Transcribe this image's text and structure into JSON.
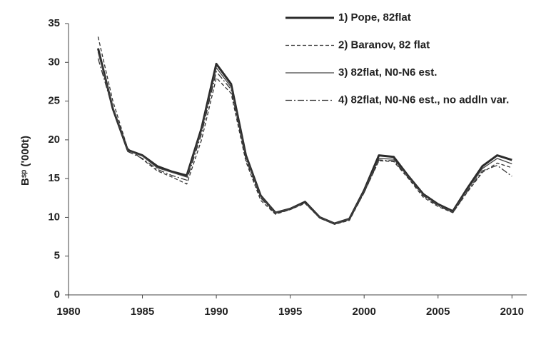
{
  "chart_data": {
    "type": "line",
    "ylabel": "Bˢᵖ ('000t)",
    "x": [
      1982,
      1983,
      1984,
      1985,
      1986,
      1987,
      1988,
      1989,
      1990,
      1991,
      1992,
      1993,
      1994,
      1995,
      1996,
      1997,
      1998,
      1999,
      2000,
      2001,
      2002,
      2003,
      2004,
      2005,
      2006,
      2007,
      2008,
      2009,
      2010
    ],
    "series": [
      {
        "name": "1) Pope, 82flat",
        "color": "#2b2b2b",
        "style": "solid",
        "width": 3,
        "values": [
          31.8,
          24,
          18.7,
          18,
          16.6,
          15.9,
          15.4,
          21.5,
          29.8,
          27.2,
          18,
          12.8,
          10.6,
          11.1,
          12,
          10,
          9.2,
          9.8,
          13.5,
          18,
          17.8,
          15.3,
          13,
          11.7,
          10.8,
          13.8,
          16.6,
          18,
          17.4
        ]
      },
      {
        "name": "2) Baranov, 82 flat",
        "color": "#333333",
        "style": "dashed",
        "width": 1.3,
        "values": [
          33.3,
          25,
          18.9,
          17.5,
          16,
          15.2,
          14.3,
          20,
          28,
          26,
          17.2,
          12.2,
          10.4,
          11,
          11.8,
          9.9,
          9.1,
          9.6,
          13.2,
          17.3,
          17.2,
          15,
          12.6,
          11.4,
          10.6,
          13.3,
          15.8,
          17,
          16.4
        ]
      },
      {
        "name": "3) 82flat, N0-N6 est.",
        "color": "#444444",
        "style": "solid",
        "width": 1.3,
        "values": [
          31.3,
          24.2,
          18.6,
          17.9,
          16.4,
          15.8,
          15.2,
          21.2,
          29.3,
          26.8,
          17.8,
          12.7,
          10.6,
          11.1,
          11.9,
          10,
          9.2,
          9.8,
          13.4,
          17.6,
          17.5,
          15.2,
          12.9,
          11.6,
          10.7,
          13.6,
          16.3,
          17.6,
          16.9
        ]
      },
      {
        "name": "4) 82flat, N0-N6 est., no addln var.",
        "color": "#333333",
        "style": "dashdot",
        "width": 1.3,
        "values": [
          30.5,
          24,
          18.5,
          17.6,
          16.2,
          15.4,
          14.8,
          20.8,
          28.8,
          26.5,
          17.5,
          12.5,
          10.5,
          11,
          11.9,
          9.9,
          9.1,
          9.7,
          13.2,
          17.4,
          17.3,
          15.1,
          12.8,
          11.5,
          10.6,
          13.4,
          16,
          16.7,
          15.3
        ]
      }
    ],
    "xlim": [
      1980,
      2011
    ],
    "xticks": [
      1980,
      1985,
      1990,
      1995,
      2000,
      2005,
      2010
    ],
    "ylim": [
      0,
      35
    ],
    "yticks": [
      0,
      5,
      10,
      15,
      20,
      25,
      30,
      35
    ],
    "grid": false,
    "legend": "top-right"
  }
}
